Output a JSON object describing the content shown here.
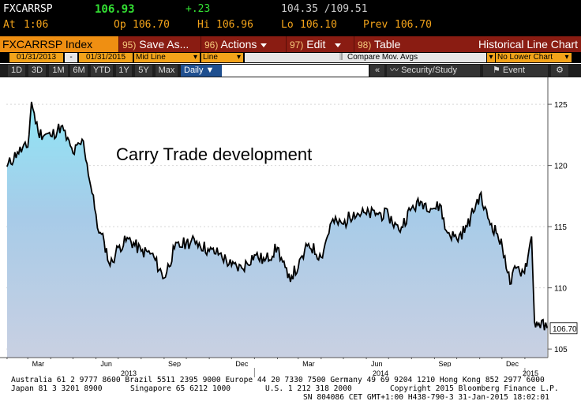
{
  "quote": {
    "ticker": "FXCARRSP",
    "last": "106.93",
    "change": "+.23",
    "range": "104.35 /109.51",
    "at_label": "At",
    "at_time": "1:06",
    "op_label": "Op",
    "op_value": "106.70",
    "hi_label": "Hi",
    "hi_value": "106.96",
    "lo_label": "Lo",
    "lo_value": "106.10",
    "prev_label": "Prev",
    "prev_value": "106.70"
  },
  "toolbar": {
    "title": "FXCARRSP Index",
    "save": {
      "num": "95)",
      "label": "Save As..."
    },
    "actions": {
      "num": "96)",
      "label": "Actions"
    },
    "edit": {
      "num": "97)",
      "label": "Edit"
    },
    "table": {
      "num": "98)",
      "label": "Table"
    },
    "chart_name": "Historical Line Chart"
  },
  "settings": {
    "start_date": "01/31/2013",
    "dash": "-",
    "end_date": "01/31/2015",
    "price_field": "Mid Line",
    "chart_style": "Line",
    "compare": "Compare Mov. Avgs",
    "lower_chart": "No Lower Chart"
  },
  "periods": [
    "1D",
    "3D",
    "1M",
    "6M",
    "YTD",
    "1Y",
    "5Y",
    "Max"
  ],
  "frequency": "Daily",
  "tools": {
    "collapse": "«",
    "security_study": "Security/Study",
    "event": "Event"
  },
  "chart_data": {
    "type": "area",
    "title": "Carry Trade development",
    "y_ticks": [
      105,
      110,
      115,
      120,
      125
    ],
    "ylim": [
      104.3,
      127.2
    ],
    "last_value_label": "106.70",
    "x_month_labels": [
      "Mar",
      "Jun",
      "Sep",
      "Dec",
      "Mar",
      "Jun",
      "Sep",
      "Dec"
    ],
    "x_year_labels": [
      "2013",
      "2014",
      "2015"
    ],
    "x": [
      "2013-02-01",
      "2013-02-15",
      "2013-03-01",
      "2013-03-06",
      "2013-03-15",
      "2013-04-01",
      "2013-04-15",
      "2013-05-01",
      "2013-05-15",
      "2013-05-25",
      "2013-06-01",
      "2013-06-05",
      "2013-06-12",
      "2013-06-20",
      "2013-07-01",
      "2013-07-15",
      "2013-08-01",
      "2013-08-15",
      "2013-09-01",
      "2013-09-15",
      "2013-10-01",
      "2013-10-15",
      "2013-11-01",
      "2013-11-15",
      "2013-12-01",
      "2013-12-15",
      "2014-01-01",
      "2014-01-15",
      "2014-02-01",
      "2014-02-15",
      "2014-03-01",
      "2014-03-15",
      "2014-04-01",
      "2014-04-15",
      "2014-05-01",
      "2014-05-15",
      "2014-06-01",
      "2014-06-15",
      "2014-07-01",
      "2014-07-15",
      "2014-08-01",
      "2014-08-15",
      "2014-09-01",
      "2014-09-10",
      "2014-09-15",
      "2014-10-01",
      "2014-10-15",
      "2014-11-01",
      "2014-11-12",
      "2014-11-25",
      "2014-12-05",
      "2014-12-12",
      "2014-12-20",
      "2014-12-30",
      "2015-01-05",
      "2015-01-10",
      "2015-01-14",
      "2015-01-20",
      "2015-01-31"
    ],
    "series": [
      {
        "values": [
          119.9,
          121.1,
          121.5,
          125.2,
          122.7,
          122.4,
          123.2,
          121.0,
          122.0,
          118.3,
          116.0,
          114.5,
          113.8,
          111.8,
          113.3,
          114.0,
          113.0,
          112.8,
          110.8,
          113.2,
          113.7,
          113.8,
          113.0,
          112.8,
          111.8,
          111.6,
          112.7,
          112.2,
          113.3,
          110.8,
          111.6,
          113.6,
          112.5,
          115.4,
          115.2,
          116.2,
          116.0,
          116.1,
          115.9,
          114.7,
          116.5,
          117.0,
          116.5,
          116.7,
          114.8,
          114.0,
          115.0,
          117.6,
          115.7,
          114.4,
          112.6,
          110.3,
          111.6,
          111.3,
          112.5,
          114.2,
          107.2,
          107.1,
          106.7
        ]
      }
    ]
  },
  "footer": {
    "line1": "Australia 61 2 9777 8600 Brazil 5511 2395 9000 Europe 44 20 7330 7500 Germany 49 69 9204 1210 Hong Kong 852 2977 6000",
    "line2a": "Japan 81 3 3201 8900",
    "line2b": "Singapore 65 6212 1000",
    "line2c": "U.S. 1 212 318 2000",
    "line2d": "Copyright 2015 Bloomberg Finance L.P.",
    "line3": "SN 804086 CET  GMT+1:00 H438-790-3 31-Jan-2015 18:02:01"
  }
}
